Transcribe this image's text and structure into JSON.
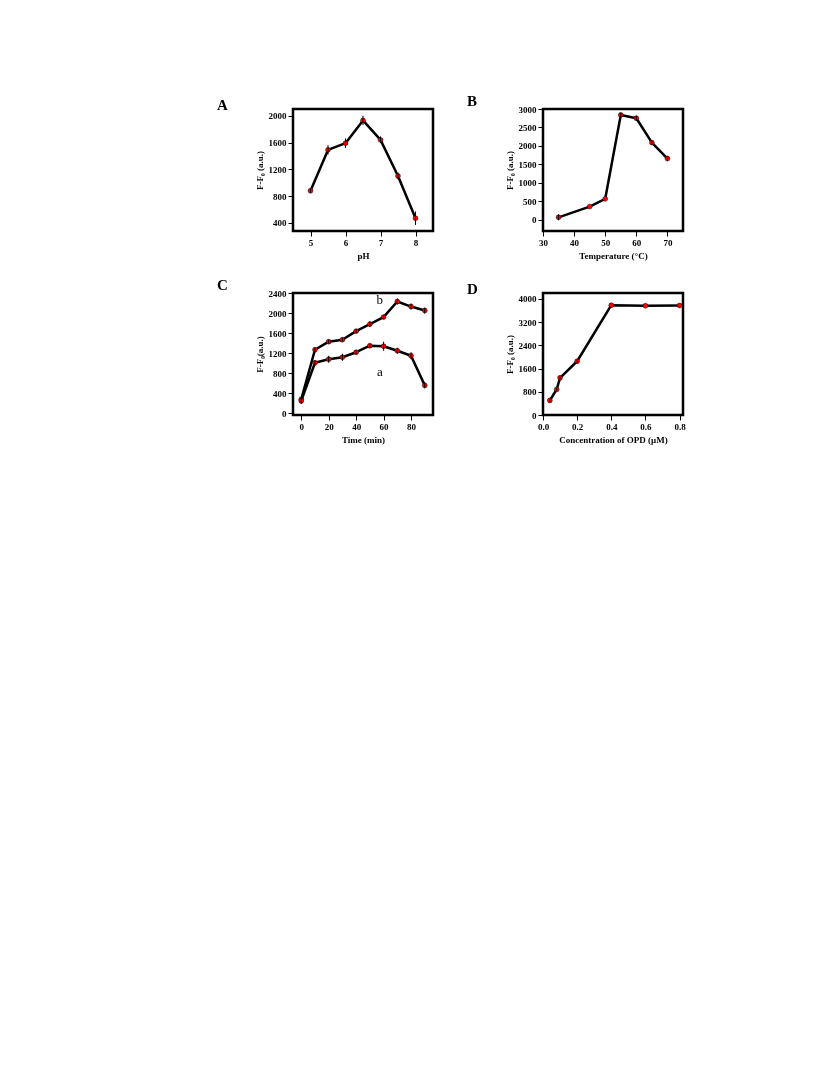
{
  "chart_data": [
    {
      "type": "line",
      "title": "A",
      "xlabel": "pH",
      "ylabel": "F-F₀ (a.u.)",
      "x": [
        5,
        5.5,
        6,
        6.5,
        7,
        7.5,
        8
      ],
      "xlim": [
        4.5,
        8.5
      ],
      "xticks": [
        5,
        6,
        7,
        8
      ],
      "ylim": [
        280,
        2100
      ],
      "yticks": [
        400,
        800,
        1200,
        1600,
        2000
      ],
      "marker": "circle",
      "grid": false,
      "series": [
        {
          "color": "#000000",
          "values": [
            880,
            1490,
            1590,
            1930,
            1640,
            1100,
            470
          ],
          "errors": [
            30,
            70,
            70,
            70,
            50,
            50,
            100
          ]
        }
      ]
    },
    {
      "type": "line",
      "title": "B",
      "xlabel": "Temperature (°C)",
      "ylabel": "F-F₀ (a.u.)",
      "x": [
        35,
        45,
        50,
        55,
        60,
        65,
        70
      ],
      "xlim": [
        30,
        75
      ],
      "xticks": [
        30,
        40,
        50,
        60,
        70
      ],
      "ylim": [
        -300,
        3000
      ],
      "yticks": [
        0,
        500,
        1000,
        1500,
        2000,
        2500,
        3000
      ],
      "marker": "circle",
      "grid": false,
      "series": [
        {
          "color": "#000000",
          "values": [
            70,
            360,
            570,
            2840,
            2750,
            2090,
            1660
          ],
          "errors": [
            80,
            null,
            null,
            60,
            70,
            50,
            70
          ]
        }
      ]
    },
    {
      "type": "line",
      "title": "C",
      "xlabel": "Time (min)",
      "ylabel": "F-F₀(a.u.)",
      "x": [
        0,
        10,
        20,
        30,
        40,
        50,
        60,
        70,
        80,
        90
      ],
      "xlim": [
        -6,
        96
      ],
      "xticks": [
        0,
        20,
        40,
        60,
        80
      ],
      "ylim": [
        -30,
        2400
      ],
      "yticks": [
        0,
        400,
        800,
        1200,
        1600,
        2000,
        2400
      ],
      "marker": "circle",
      "grid": false,
      "series": [
        {
          "name": "b",
          "color": "#000000",
          "values": [
            280,
            1270,
            1430,
            1470,
            1640,
            1780,
            1920,
            2230,
            2130,
            2050
          ],
          "errors": [
            50,
            40,
            40,
            40,
            40,
            60,
            40,
            60,
            60,
            60
          ]
        },
        {
          "name": "a",
          "color": "#000000",
          "values": [
            250,
            1010,
            1080,
            1120,
            1220,
            1350,
            1340,
            1250,
            1150,
            560
          ],
          "errors": [
            60,
            50,
            70,
            70,
            40,
            40,
            90,
            60,
            70,
            60
          ]
        }
      ]
    },
    {
      "type": "line",
      "title": "D",
      "xlabel": "Concentration of OPD (μM)",
      "ylabel": "F-F₀ (a.u.)",
      "x": [
        0.04,
        0.08,
        0.1,
        0.2,
        0.4,
        0.6,
        0.8
      ],
      "xlim": [
        0,
        0.82
      ],
      "xticks": [
        {
          "value": 0,
          "label": "0.0"
        },
        0.2,
        0.4,
        0.6,
        0.8
      ],
      "ylim": [
        0,
        4200
      ],
      "yticks": [
        0,
        800,
        1600,
        2400,
        3200,
        4000
      ],
      "marker": "circle",
      "grid": false,
      "series": [
        {
          "color": "#000000",
          "values": [
            500,
            880,
            1280,
            1850,
            3780,
            3760,
            3770
          ],
          "errors": [
            60,
            50,
            50,
            60,
            null,
            null,
            null
          ]
        }
      ]
    }
  ]
}
